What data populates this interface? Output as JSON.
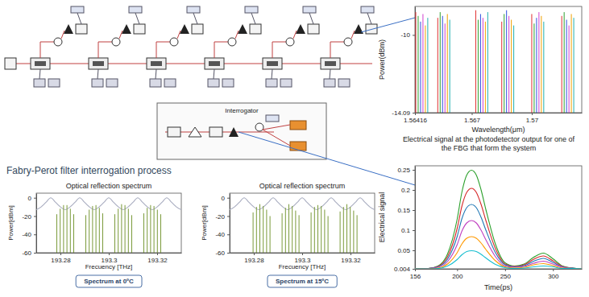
{
  "diagram": {
    "interrogator_label": "Interrogator",
    "section_title": "Fabry-Perot filter interrogation process"
  },
  "chart_data": [
    {
      "type": "spike",
      "x_label": "Wavelength(μm)",
      "y_label": "Power(dBm)",
      "xlim": [
        1.56416,
        1.5725
      ],
      "ylim": [
        -14.09,
        -8.5
      ],
      "xticks": [
        1.56416,
        1.567,
        1.57
      ],
      "yticks": [
        -10,
        -14.09
      ],
      "series": [
        {
          "color": "#e03030",
          "x": [
            1.5642,
            1.5653,
            1.5672,
            1.5685,
            1.57,
            1.5715
          ],
          "values": [
            -8.8,
            -9.1,
            -8.7,
            -9.3,
            -8.9,
            -9.0
          ]
        },
        {
          "color": "#30a030",
          "x": [
            1.56432,
            1.56542,
            1.56732,
            1.56862,
            1.57012,
            1.57162
          ],
          "values": [
            -9.0,
            -8.8,
            -9.2,
            -8.9,
            -9.4,
            -8.8
          ]
        },
        {
          "color": "#3050e0",
          "x": [
            1.56444,
            1.56554,
            1.56744,
            1.56874,
            1.57024,
            1.57174
          ],
          "values": [
            -9.3,
            -9.0,
            -8.9,
            -8.7,
            -9.1,
            -9.2
          ]
        },
        {
          "color": "#d040d0",
          "x": [
            1.56456,
            1.56566,
            1.56756,
            1.56886,
            1.57036,
            1.57186
          ],
          "values": [
            -8.9,
            -9.4,
            -9.1,
            -9.0,
            -8.8,
            -9.5
          ]
        },
        {
          "color": "#f0a000",
          "x": [
            1.56468,
            1.56578,
            1.56768,
            1.56898,
            1.57048,
            1.57198
          ],
          "values": [
            -9.5,
            -8.9,
            -9.3,
            -9.2,
            -9.0,
            -8.9
          ]
        },
        {
          "color": "#20b0b0",
          "x": [
            1.5648,
            1.5659,
            1.5678,
            1.5691,
            1.5706,
            1.5721
          ],
          "values": [
            -9.1,
            -9.2,
            -8.8,
            -9.5,
            -9.3,
            -9.1
          ]
        }
      ]
    },
    {
      "type": "line",
      "title": "Electrical signal at the photodetector output for one of the FBG that form the system",
      "x_label": "Time(ps)",
      "y_label": "Electrical signal",
      "xlim": [
        156,
        330
      ],
      "ylim": [
        0.004,
        0.26
      ],
      "xticks": [
        156,
        200,
        250,
        300
      ],
      "yticks": [
        0.004,
        0.05,
        0.1,
        0.15,
        0.2,
        0.25
      ],
      "x": [
        156,
        170,
        180,
        190,
        200,
        205,
        210,
        215,
        220,
        225,
        230,
        240,
        250,
        260,
        270,
        280,
        290,
        300,
        310,
        320,
        330
      ],
      "series": [
        {
          "color": "#2ca02c",
          "values": [
            0.004,
            0.005,
            0.011,
            0.041,
            0.127,
            0.195,
            0.237,
            0.249,
            0.237,
            0.2,
            0.151,
            0.065,
            0.019,
            0.011,
            0.016,
            0.033,
            0.043,
            0.029,
            0.011,
            0.006,
            0.004
          ]
        },
        {
          "color": "#d62728",
          "values": [
            0.004,
            0.005,
            0.01,
            0.034,
            0.104,
            0.16,
            0.194,
            0.204,
            0.194,
            0.164,
            0.124,
            0.054,
            0.016,
            0.01,
            0.014,
            0.028,
            0.036,
            0.024,
            0.01,
            0.006,
            0.004
          ]
        },
        {
          "color": "#1f77b4",
          "values": [
            0.004,
            0.005,
            0.009,
            0.028,
            0.084,
            0.129,
            0.156,
            0.164,
            0.156,
            0.132,
            0.1,
            0.044,
            0.014,
            0.009,
            0.012,
            0.023,
            0.03,
            0.02,
            0.009,
            0.006,
            0.004
          ]
        },
        {
          "color": "#c040c0",
          "values": [
            0.004,
            0.005,
            0.008,
            0.022,
            0.064,
            0.098,
            0.118,
            0.124,
            0.118,
            0.1,
            0.076,
            0.034,
            0.011,
            0.008,
            0.01,
            0.018,
            0.023,
            0.016,
            0.008,
            0.005,
            0.004
          ]
        },
        {
          "color": "#ff9900",
          "values": [
            0.004,
            0.004,
            0.006,
            0.016,
            0.044,
            0.066,
            0.08,
            0.084,
            0.08,
            0.068,
            0.052,
            0.024,
            0.009,
            0.006,
            0.008,
            0.014,
            0.017,
            0.012,
            0.006,
            0.005,
            0.004
          ]
        },
        {
          "color": "#17becf",
          "values": [
            0.004,
            0.004,
            0.005,
            0.011,
            0.027,
            0.039,
            0.047,
            0.049,
            0.047,
            0.04,
            0.031,
            0.015,
            0.007,
            0.005,
            0.006,
            0.009,
            0.011,
            0.009,
            0.005,
            0.005,
            0.004
          ]
        }
      ]
    },
    {
      "type": "line",
      "title": "Optical reflection spectrum",
      "x_label": "Frecuency [THz]",
      "y_label": "Power[dBm]",
      "caption": "Spectrum at 0ºC",
      "xlim": [
        193.27,
        193.33
      ],
      "ylim": [
        -60,
        5
      ],
      "xticks": [
        193.28,
        193.3,
        193.32
      ],
      "yticks": [
        0,
        -20,
        -40,
        -60
      ],
      "series": [
        {
          "type": "line",
          "color": "#a9adc0",
          "x": [
            193.27,
            193.272,
            193.274,
            193.276,
            193.278,
            193.28,
            193.282,
            193.284,
            193.286,
            193.288,
            193.29,
            193.292,
            193.294,
            193.296,
            193.298,
            193.3,
            193.302,
            193.304,
            193.306,
            193.308,
            193.31,
            193.312,
            193.314,
            193.316,
            193.318,
            193.32,
            193.322,
            193.324,
            193.326,
            193.328,
            193.33
          ],
          "values": [
            -13,
            -10,
            -5,
            0,
            -5,
            -10,
            -13,
            -10,
            -5,
            0,
            -5,
            -10,
            -13,
            -10,
            -5,
            0,
            -5,
            -10,
            -13,
            -10,
            -5,
            0,
            -5,
            -10,
            -13,
            -10,
            -5,
            0,
            -5,
            -10,
            -13
          ]
        },
        {
          "type": "spike",
          "color": "#7a9a3a",
          "x": [
            193.2785,
            193.2799,
            193.2813,
            193.2827,
            193.2841,
            193.2855,
            193.2905,
            193.2919,
            193.2933,
            193.2947,
            193.2961,
            193.2975,
            193.3025,
            193.3039,
            193.3053,
            193.3067,
            193.3081,
            193.3095,
            193.3145,
            193.3159,
            193.3173,
            193.3187,
            193.3201,
            193.3215
          ],
          "values": [
            -18,
            -12,
            -8,
            -8,
            -12,
            -18,
            -19,
            -13,
            -9,
            -8,
            -11,
            -17,
            -18,
            -12,
            -7,
            -8,
            -12,
            -19,
            -17,
            -11,
            -8,
            -9,
            -13,
            -18
          ]
        }
      ]
    },
    {
      "type": "line",
      "title": "Optical reflection spectrum",
      "x_label": "Frecuency [THz]",
      "y_label": "Power[dBm]",
      "caption": "Spectrum at 15ºC",
      "xlim": [
        193.27,
        193.33
      ],
      "ylim": [
        -60,
        5
      ],
      "xticks": [
        193.28,
        193.3,
        193.32
      ],
      "yticks": [
        0,
        -20,
        -40,
        -60
      ],
      "series": [
        {
          "type": "line",
          "color": "#a9adc0",
          "x": [
            193.27,
            193.272,
            193.274,
            193.276,
            193.278,
            193.28,
            193.282,
            193.284,
            193.286,
            193.288,
            193.29,
            193.292,
            193.294,
            193.296,
            193.298,
            193.3,
            193.302,
            193.304,
            193.306,
            193.308,
            193.31,
            193.312,
            193.314,
            193.316,
            193.318,
            193.32,
            193.322,
            193.324,
            193.326,
            193.328,
            193.33
          ],
          "values": [
            -13,
            -10,
            -5,
            0,
            -5,
            -10,
            -13,
            -10,
            -5,
            0,
            -5,
            -10,
            -13,
            -10,
            -5,
            0,
            -5,
            -10,
            -13,
            -10,
            -5,
            0,
            -5,
            -10,
            -13,
            -10,
            -5,
            0,
            -5,
            -10,
            -13
          ]
        },
        {
          "type": "spike",
          "color": "#7a9a3a",
          "x": [
            193.2797,
            193.2811,
            193.2825,
            193.2839,
            193.2853,
            193.2867,
            193.2917,
            193.2931,
            193.2945,
            193.2959,
            193.2973,
            193.2987,
            193.3037,
            193.3051,
            193.3065,
            193.3079,
            193.3093,
            193.3107,
            193.3157,
            193.3171,
            193.3185,
            193.3199,
            193.3213,
            193.3227
          ],
          "values": [
            -16,
            -10,
            -7,
            -9,
            -13,
            -20,
            -17,
            -11,
            -7,
            -9,
            -14,
            -19,
            -16,
            -10,
            -8,
            -9,
            -13,
            -20,
            -15,
            -10,
            -7,
            -10,
            -14,
            -19
          ]
        }
      ]
    }
  ]
}
